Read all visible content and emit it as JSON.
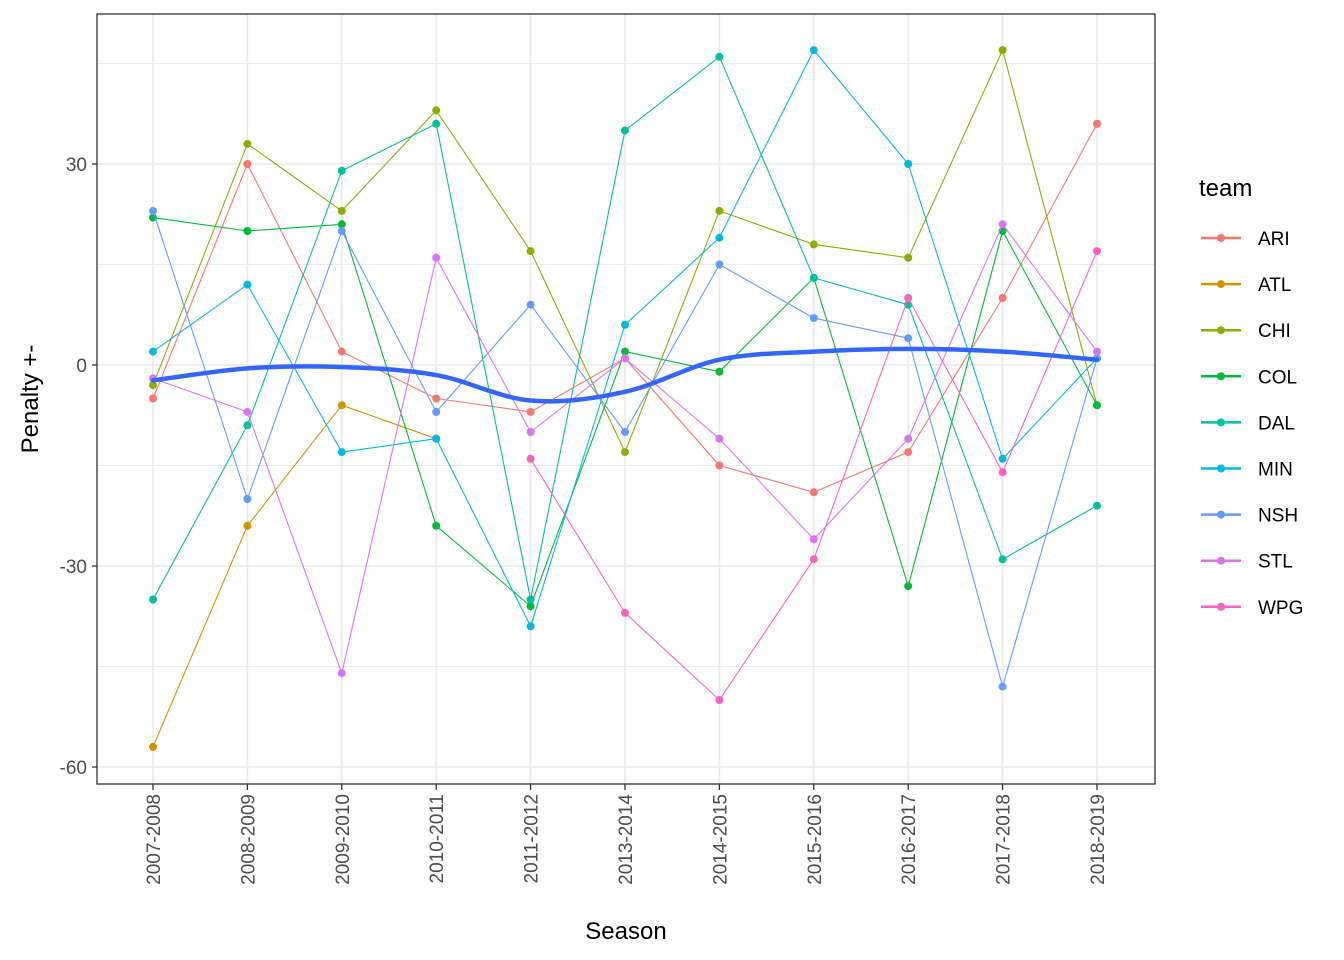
{
  "chart_data": {
    "type": "line",
    "title": "",
    "xlabel": "Season",
    "ylabel": "Penalty +-",
    "categories": [
      "2007-2008",
      "2008-2009",
      "2009-2010",
      "2010-2011",
      "2011-2012",
      "2013-2014",
      "2014-2015",
      "2015-2016",
      "2016-2017",
      "2017-2018",
      "2018-2019"
    ],
    "yticks": [
      30,
      0,
      -30,
      -60
    ],
    "ytick_labels": [
      "30",
      "0",
      "-30",
      "-60"
    ],
    "ylim": [
      -63,
      48.5
    ],
    "grid": true,
    "legend": {
      "title": "team",
      "position": "right"
    },
    "series": [
      {
        "name": "ARI",
        "color": "#F8766D",
        "values": [
          -5,
          30,
          2,
          -5,
          -7,
          1,
          -15,
          -19,
          -13,
          10,
          36
        ]
      },
      {
        "name": "ATL",
        "color": "#D39200",
        "values": [
          -57,
          -24,
          -6,
          -11,
          null,
          null,
          null,
          null,
          null,
          null,
          null
        ]
      },
      {
        "name": "CHI",
        "color": "#93AA00",
        "values": [
          -3,
          33,
          23,
          38,
          17,
          -13,
          23,
          18,
          16,
          47,
          -6
        ]
      },
      {
        "name": "COL",
        "color": "#00BA38",
        "values": [
          22,
          20,
          21,
          -24,
          -36,
          2,
          -1,
          13,
          -33,
          20,
          -6
        ]
      },
      {
        "name": "DAL",
        "color": "#00C19F",
        "values": [
          -35,
          -9,
          29,
          36,
          -35,
          35,
          46,
          13,
          9,
          -29,
          -21
        ]
      },
      {
        "name": "MIN",
        "color": "#00B9E3",
        "values": [
          2,
          12,
          -13,
          -11,
          -39,
          6,
          19,
          47,
          30,
          -14,
          1
        ]
      },
      {
        "name": "NSH",
        "color": "#619CFF",
        "values": [
          23,
          -20,
          20,
          -7,
          9,
          -10,
          15,
          7,
          4,
          -48,
          1
        ]
      },
      {
        "name": "STL",
        "color": "#DB72FB",
        "values": [
          -2,
          -7,
          -46,
          16,
          -10,
          1,
          -11,
          -26,
          -11,
          21,
          2
        ]
      },
      {
        "name": "WPG",
        "color": "#FF61C3",
        "values": [
          null,
          null,
          null,
          null,
          -14,
          -37,
          -50,
          -29,
          10,
          -16,
          17
        ]
      }
    ],
    "smooth": {
      "name": "loess",
      "color": "#3366FF",
      "values": [
        -2.3,
        -0.5,
        -0.3,
        -1.5,
        -5.3,
        -4,
        0.8,
        2,
        2.4,
        2,
        0.8
      ]
    }
  }
}
